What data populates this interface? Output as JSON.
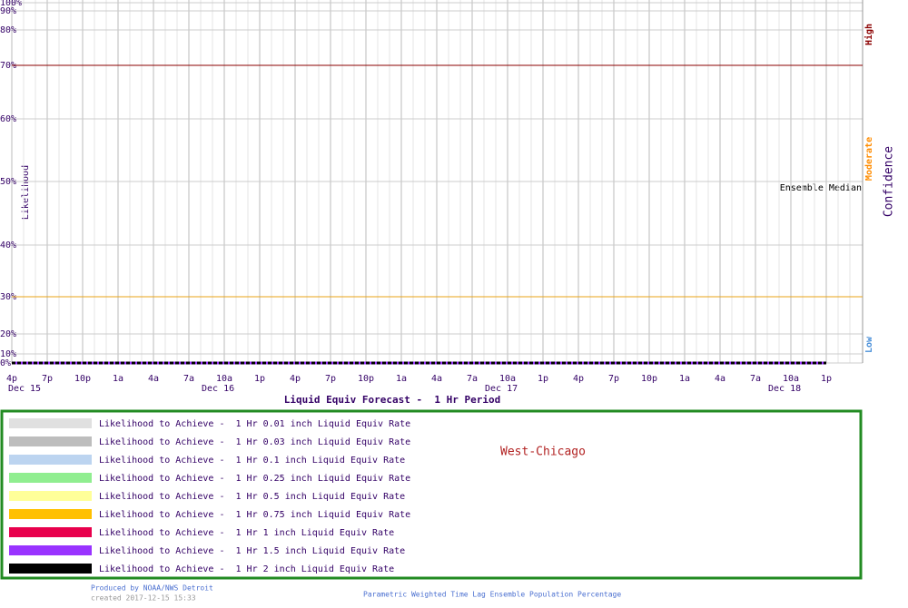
{
  "chart_data": {
    "type": "line",
    "x_title": "Liquid Equiv Forecast -  1 Hr Period",
    "y_title": "Likelihood",
    "y2_title": "Confidence",
    "confidence_labels": [
      {
        "label": "High",
        "color": "#8b0000"
      },
      {
        "label": "Moderate",
        "color": "#ff8c00"
      },
      {
        "label": "Low",
        "color": "#4a90d9"
      }
    ],
    "annotation": "Ensemble Median",
    "location": "West-Chicago",
    "categories": [
      "4p",
      "7p",
      "10p",
      "1a",
      "4a",
      "7a",
      "10a",
      "1p",
      "4p",
      "7p",
      "10p",
      "1a",
      "4a",
      "7a",
      "10a",
      "1p",
      "4p",
      "7p",
      "10p",
      "1a",
      "4a",
      "7a",
      "10a",
      "1p"
    ],
    "date_labels": [
      "Dec 15",
      null,
      null,
      null,
      null,
      null,
      "Dec 16",
      null,
      null,
      null,
      null,
      null,
      null,
      null,
      "Dec 17",
      null,
      null,
      null,
      null,
      null,
      null,
      null,
      "Dec 18",
      null
    ],
    "ylim": [
      0,
      100
    ],
    "yticks": [
      {
        "value": 0,
        "label": "0%"
      },
      {
        "value": 10,
        "label": "10%"
      },
      {
        "value": 20,
        "label": "20%"
      },
      {
        "value": 30,
        "label": "30%"
      },
      {
        "value": 40,
        "label": "40%"
      },
      {
        "value": 50,
        "label": "50%"
      },
      {
        "value": 60,
        "label": "60%"
      },
      {
        "value": 70,
        "label": "70%"
      },
      {
        "value": 80,
        "label": "80%"
      },
      {
        "value": 90,
        "label": "90%"
      },
      {
        "value": 100,
        "label": "100%"
      }
    ],
    "reference_lines": [
      {
        "value": 70,
        "color": "#8b0000"
      },
      {
        "value": 30,
        "color": "#e8a317"
      }
    ],
    "grid": true,
    "series": [
      {
        "name": "Likelihood to Achieve -  1 Hr 0.01 inch Liquid Equiv Rate",
        "color": "#e0e0e0",
        "values": [
          0,
          0,
          0,
          0,
          0,
          0,
          0,
          0,
          0,
          0,
          0,
          0,
          0,
          0,
          0,
          0,
          0,
          0,
          0,
          0,
          0,
          0,
          0,
          0
        ]
      },
      {
        "name": "Likelihood to Achieve -  1 Hr 0.03 inch Liquid Equiv Rate",
        "color": "#bdbdbd",
        "values": [
          0,
          0,
          0,
          0,
          0,
          0,
          0,
          0,
          0,
          0,
          0,
          0,
          0,
          0,
          0,
          0,
          0,
          0,
          0,
          0,
          0,
          0,
          0,
          0
        ]
      },
      {
        "name": "Likelihood to Achieve -  1 Hr 0.1 inch Liquid Equiv Rate",
        "color": "#bcd4f0",
        "values": [
          0,
          0,
          0,
          0,
          0,
          0,
          0,
          0,
          0,
          0,
          0,
          0,
          0,
          0,
          0,
          0,
          0,
          0,
          0,
          0,
          0,
          0,
          0,
          0
        ]
      },
      {
        "name": "Likelihood to Achieve -  1 Hr 0.25 inch Liquid Equiv Rate",
        "color": "#90ee90",
        "values": [
          0,
          0,
          0,
          0,
          0,
          0,
          0,
          0,
          0,
          0,
          0,
          0,
          0,
          0,
          0,
          0,
          0,
          0,
          0,
          0,
          0,
          0,
          0,
          0
        ]
      },
      {
        "name": "Likelihood to Achieve -  1 Hr 0.5 inch Liquid Equiv Rate",
        "color": "#ffff99",
        "values": [
          0,
          0,
          0,
          0,
          0,
          0,
          0,
          0,
          0,
          0,
          0,
          0,
          0,
          0,
          0,
          0,
          0,
          0,
          0,
          0,
          0,
          0,
          0,
          0
        ]
      },
      {
        "name": "Likelihood to Achieve -  1 Hr 0.75 inch Liquid Equiv Rate",
        "color": "#ffc000",
        "values": [
          0,
          0,
          0,
          0,
          0,
          0,
          0,
          0,
          0,
          0,
          0,
          0,
          0,
          0,
          0,
          0,
          0,
          0,
          0,
          0,
          0,
          0,
          0,
          0
        ]
      },
      {
        "name": "Likelihood to Achieve -  1 Hr 1 inch Liquid Equiv Rate",
        "color": "#e8004c",
        "values": [
          0,
          0,
          0,
          0,
          0,
          0,
          0,
          0,
          0,
          0,
          0,
          0,
          0,
          0,
          0,
          0,
          0,
          0,
          0,
          0,
          0,
          0,
          0,
          0
        ]
      },
      {
        "name": "Likelihood to Achieve -  1 Hr 1.5 inch Liquid Equiv Rate",
        "color": "#9933ff",
        "values": [
          0,
          0,
          0,
          0,
          0,
          0,
          0,
          0,
          0,
          0,
          0,
          0,
          0,
          0,
          0,
          0,
          0,
          0,
          0,
          0,
          0,
          0,
          0,
          0
        ]
      },
      {
        "name": "Likelihood to Achieve -  1 Hr 2 inch Liquid Equiv Rate",
        "color": "#000000",
        "values": [
          0,
          0,
          0,
          0,
          0,
          0,
          0,
          0,
          0,
          0,
          0,
          0,
          0,
          0,
          0,
          0,
          0,
          0,
          0,
          0,
          0,
          0,
          0,
          0
        ]
      }
    ],
    "footer": {
      "producer": "Produced by NOAA/NWS Detroit",
      "created": "created 2017-12-15 15:33",
      "method": "Parametric Weighted Time Lag Ensemble Population Percentage"
    }
  }
}
